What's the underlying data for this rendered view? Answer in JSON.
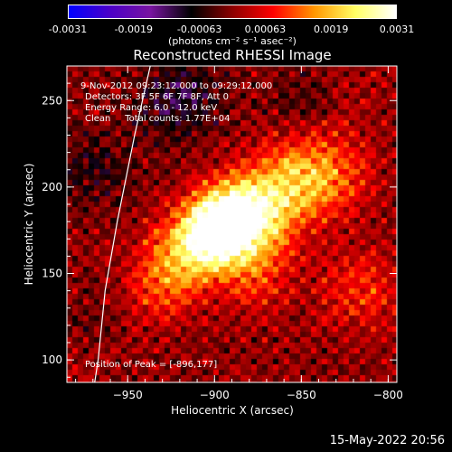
{
  "colorbar": {
    "ticks": [
      "-0.0031",
      "-0.0019",
      "-0.00063",
      "0.00063",
      "0.0019",
      "0.0031"
    ],
    "units": "(photons cm⁻² s⁻¹ asec⁻²)"
  },
  "annotations": {
    "time_range": "9-Nov-2012 09:23:12.000 to 09:29:12.000",
    "detectors": "Detectors: 3F 5F 6F 7F 8F, Att 0",
    "energy_range": "Energy Range: 6.0 - 12.0 keV",
    "clean_counts": "Clean     Total counts: 1.77E+04",
    "peak_position": "Position of Peak = [-896,177]"
  },
  "timestamp": "15-May-2022 20:56",
  "colors": {
    "background": "#000000",
    "foreground": "#ffffff",
    "colormap": [
      "#0000ff",
      "#4b00c8",
      "#7814a0",
      "#000000",
      "#8c0000",
      "#ff0000",
      "#ff9600",
      "#ffff64",
      "#ffffff"
    ]
  },
  "chart_data": {
    "type": "heatmap",
    "title": "Reconstructed RHESSI Image",
    "xlabel": "Heliocentric X (arcsec)",
    "ylabel": "Heliocentric Y (arcsec)",
    "xlim": [
      -985,
      -795
    ],
    "ylim": [
      87,
      270
    ],
    "xticks": [
      -950,
      -900,
      -850,
      -800
    ],
    "yticks": [
      100,
      150,
      200,
      250
    ],
    "colorbar_range": [
      -0.0031,
      0.0031
    ],
    "peak": {
      "x": -896,
      "y": 177,
      "value": 0.0031
    },
    "sources": [
      {
        "x": -896,
        "y": 177,
        "value": 0.0031
      },
      {
        "x": -875,
        "y": 185,
        "value": 0.0017
      },
      {
        "x": -848,
        "y": 200,
        "value": 0.0012
      },
      {
        "x": -828,
        "y": 210,
        "value": 0.0008
      },
      {
        "x": -915,
        "y": 165,
        "value": 0.001
      },
      {
        "x": -875,
        "y": 150,
        "value": 0.0009
      },
      {
        "x": -815,
        "y": 140,
        "value": 0.0009
      },
      {
        "x": -930,
        "y": 150,
        "value": 0.0004
      },
      {
        "x": -920,
        "y": 250,
        "value": -0.001
      },
      {
        "x": -970,
        "y": 210,
        "value": -0.0006
      },
      {
        "x": -960,
        "y": 120,
        "value": -0.0005
      },
      {
        "x": -845,
        "y": 245,
        "value": -0.0005
      }
    ],
    "limb": [
      [
        -937,
        270
      ],
      [
        -946,
        230
      ],
      [
        -956,
        180
      ],
      [
        -963,
        140
      ],
      [
        -967,
        100
      ],
      [
        -969,
        87
      ]
    ],
    "grid": false
  }
}
